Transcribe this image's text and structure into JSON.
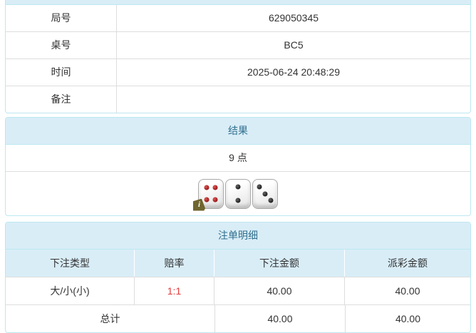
{
  "colors": {
    "accent": "#31708f",
    "panel-border": "#bce8f1",
    "heading-bg": "#d9edf7",
    "row-divider": "#dddddd",
    "odds-red": "#e43a3a",
    "pip-red": "#a81414",
    "pip-black": "#1a1a1a"
  },
  "info_table": {
    "rows": [
      {
        "label": "局号",
        "value": "629050345"
      },
      {
        "label": "桌号",
        "value": "BC5"
      },
      {
        "label": "时间",
        "value": "2025-06-24 20:48:29"
      },
      {
        "label": "备注",
        "value": ""
      }
    ]
  },
  "result_panel": {
    "title": "结果",
    "points": "9 点",
    "info_badge": "i",
    "dice": [
      {
        "value": 4,
        "color": "red"
      },
      {
        "value": 2,
        "color": "black"
      },
      {
        "value": 3,
        "color": "black"
      }
    ]
  },
  "bets_panel": {
    "title": "注单明细",
    "columns": [
      "下注类型",
      "赔率",
      "下注金额",
      "派彩金额"
    ],
    "rows": [
      {
        "type": "大/小(小)",
        "odds": "1:1",
        "bet": "40.00",
        "payout": "40.00"
      }
    ],
    "total": {
      "label": "总计",
      "bet": "40.00",
      "payout": "40.00"
    }
  }
}
